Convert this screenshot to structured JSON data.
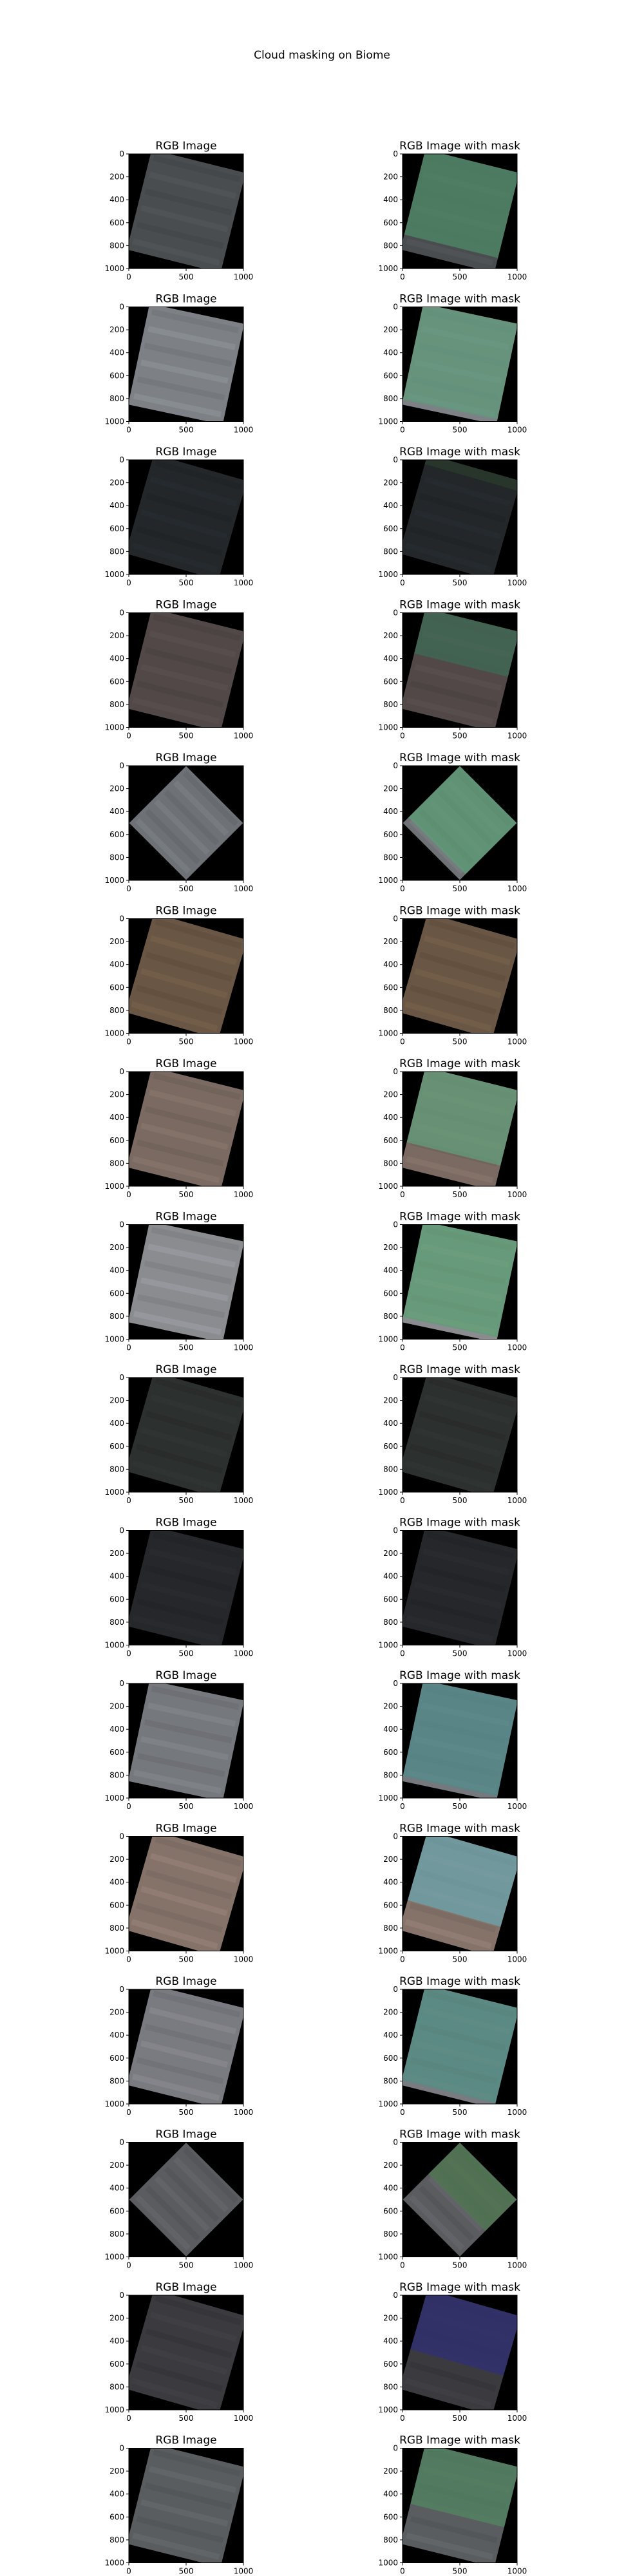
{
  "figure": {
    "title": "Cloud masking on Biome"
  },
  "chart_data": {
    "type": "image-grid",
    "title": "Cloud masking on Biome",
    "rows": 16,
    "columns": 2,
    "panel_titles": [
      "RGB Image",
      "RGB Image with mask"
    ],
    "xticks": [
      0,
      500,
      1000
    ],
    "yticks": [
      0,
      200,
      400,
      600,
      800,
      1000
    ],
    "xlim": [
      0,
      1000
    ],
    "ylim": [
      1000,
      0
    ],
    "panels": [
      {
        "row": 1,
        "left_title": "RGB Image",
        "right_title": "RGB Image with mask",
        "scene_color": "#4a4d50",
        "mask_color": "#4f8e6a",
        "cloud_fraction": 0.85
      },
      {
        "row": 2,
        "left_title": "RGB Image",
        "right_title": "RGB Image with mask",
        "scene_color": "#7d8186",
        "mask_color": "#5e9a7a",
        "cloud_fraction": 0.95
      },
      {
        "row": 3,
        "left_title": "RGB Image",
        "right_title": "RGB Image with mask",
        "scene_color": "#23272a",
        "mask_color": "#2a3b2d",
        "cloud_fraction": 0.1
      },
      {
        "row": 4,
        "left_title": "RGB Image",
        "right_title": "RGB Image with mask",
        "scene_color": "#514847",
        "mask_color": "#3f6e57",
        "cloud_fraction": 0.45
      },
      {
        "row": 5,
        "left_title": "RGB Image",
        "right_title": "RGB Image with mask",
        "scene_color": "#6e7277",
        "mask_color": "#5c9e74",
        "cloud_fraction": 0.9
      },
      {
        "row": 6,
        "left_title": "RGB Image",
        "right_title": "RGB Image with mask",
        "scene_color": "#6a5644",
        "mask_color": "#6a5644",
        "cloud_fraction": 0.05
      },
      {
        "row": 7,
        "left_title": "RGB Image",
        "right_title": "RGB Image with mask",
        "scene_color": "#7a6a62",
        "mask_color": "#5fa07c",
        "cloud_fraction": 0.75
      },
      {
        "row": 8,
        "left_title": "RGB Image",
        "right_title": "RGB Image with mask",
        "scene_color": "#8a8c90",
        "mask_color": "#5aa072",
        "cloud_fraction": 0.95
      },
      {
        "row": 9,
        "left_title": "RGB Image",
        "right_title": "RGB Image with mask",
        "scene_color": "#2c302f",
        "mask_color": "#2c302f",
        "cloud_fraction": 0.0
      },
      {
        "row": 10,
        "left_title": "RGB Image",
        "right_title": "RGB Image with mask",
        "scene_color": "#26272b",
        "mask_color": "#26272b",
        "cloud_fraction": 0.0
      },
      {
        "row": 11,
        "left_title": "RGB Image",
        "right_title": "RGB Image with mask",
        "scene_color": "#75787d",
        "mask_color": "#4f8a8a",
        "cloud_fraction": 0.95
      },
      {
        "row": 12,
        "left_title": "RGB Image",
        "right_title": "RGB Image with mask",
        "scene_color": "#85736a",
        "mask_color": "#6aa6b0",
        "cloud_fraction": 0.7
      },
      {
        "row": 13,
        "left_title": "RGB Image",
        "right_title": "RGB Image with mask",
        "scene_color": "#7a7b80",
        "mask_color": "#4f8f84",
        "cloud_fraction": 0.95
      },
      {
        "row": 14,
        "left_title": "RGB Image",
        "right_title": "RGB Image with mask",
        "scene_color": "#5b5c60",
        "mask_color": "#4f7a4f",
        "cloud_fraction": 0.55
      },
      {
        "row": 15,
        "left_title": "RGB Image",
        "right_title": "RGB Image with mask",
        "scene_color": "#3a3a3f",
        "mask_color": "#2e2e78",
        "cloud_fraction": 0.6
      },
      {
        "row": 16,
        "left_title": "RGB Image",
        "right_title": "RGB Image with mask",
        "scene_color": "#5a5d60",
        "mask_color": "#4e8560",
        "cloud_fraction": 0.6
      }
    ]
  }
}
